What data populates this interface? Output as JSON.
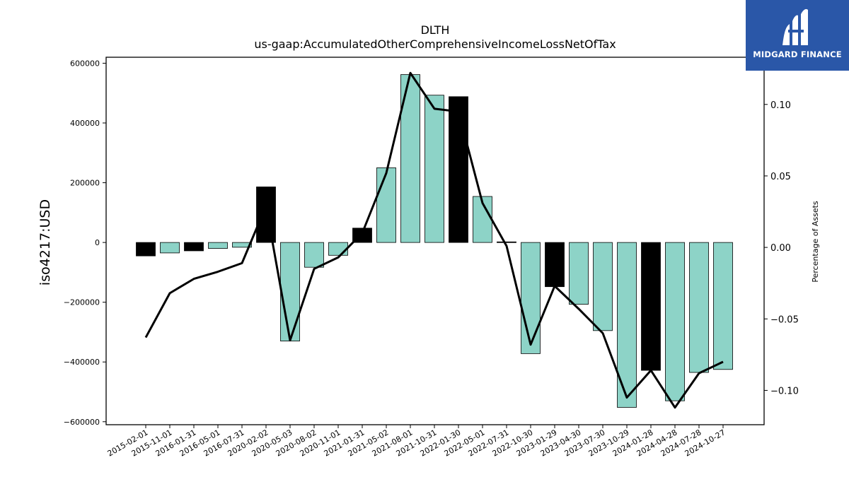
{
  "chart_data": {
    "type": "bar",
    "title": "DLTH",
    "subtitle": "us-gaap:AccumulatedOtherComprehensiveIncomeLossNetOfTax",
    "ylabel": "iso4217:USD",
    "y2label": "Percentage of Assets",
    "ylim": [
      -610000,
      620000
    ],
    "y2lim": [
      -0.124,
      0.133
    ],
    "yticks": [
      -600000,
      -400000,
      -200000,
      0,
      200000,
      400000,
      600000
    ],
    "y2ticks": [
      -0.1,
      -0.05,
      0.0,
      0.05,
      0.1
    ],
    "ytick_labels": [
      "−600000",
      "−400000",
      "−200000",
      "0",
      "200000",
      "400000",
      "600000"
    ],
    "y2tick_labels": [
      "−0.10",
      "−0.05",
      "0.00",
      "0.05",
      "0.10"
    ],
    "categories": [
      "2015-02-01",
      "2015-11-01",
      "2016-01-31",
      "2016-05-01",
      "2016-07-31",
      "2020-02-02",
      "2020-05-03",
      "2020-08-02",
      "2020-11-01",
      "2021-01-31",
      "2021-05-02",
      "2021-08-01",
      "2021-10-31",
      "2022-01-30",
      "2022-05-01",
      "2022-07-31",
      "2022-10-30",
      "2023-01-29",
      "2023-04-30",
      "2023-07-30",
      "2023-10-29",
      "2024-01-28",
      "2024-04-28",
      "2024-07-28",
      "2024-10-27"
    ],
    "series": [
      {
        "type": "bar",
        "values": [
          -45000,
          -35000,
          -28000,
          -20000,
          -16000,
          186000,
          -330000,
          -83000,
          -43000,
          48000,
          250000,
          562000,
          493000,
          488000,
          154000,
          2000,
          -372000,
          -148000,
          -207000,
          -295000,
          -552000,
          -428000,
          -530000,
          -435000,
          -425000
        ],
        "colors": [
          "#000000",
          "#8dd3c7",
          "#000000",
          "#8dd3c7",
          "#8dd3c7",
          "#000000",
          "#8dd3c7",
          "#8dd3c7",
          "#8dd3c7",
          "#000000",
          "#8dd3c7",
          "#8dd3c7",
          "#8dd3c7",
          "#000000",
          "#8dd3c7",
          "#000000",
          "#8dd3c7",
          "#000000",
          "#8dd3c7",
          "#8dd3c7",
          "#8dd3c7",
          "#000000",
          "#8dd3c7",
          "#8dd3c7",
          "#8dd3c7"
        ]
      },
      {
        "type": "line",
        "axis": "right",
        "values": [
          -0.063,
          -0.032,
          -0.022,
          -0.017,
          -0.011,
          0.029,
          -0.065,
          -0.015,
          -0.007,
          0.01,
          0.052,
          0.122,
          0.097,
          0.095,
          0.031,
          0.001,
          -0.068,
          -0.027,
          -0.043,
          -0.06,
          -0.105,
          -0.086,
          -0.112,
          -0.088,
          -0.08
        ],
        "color": "#000000"
      }
    ],
    "grid": false
  },
  "logo": {
    "text": "MIDGARD FINANCE",
    "background": "#2a57a8"
  }
}
